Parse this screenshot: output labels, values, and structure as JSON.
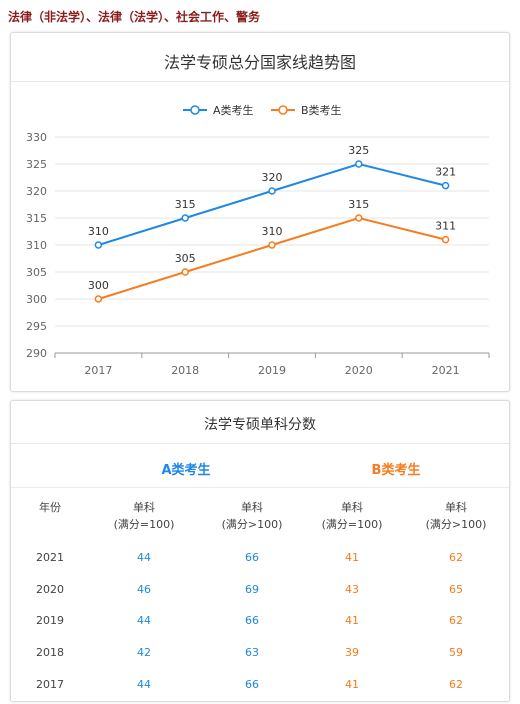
{
  "page": {
    "heading": "法律（非法学）、法律（法学）、社会工作、警务"
  },
  "chart_data": {
    "type": "line",
    "title": "法学专硕总分国家线趋势图",
    "categories": [
      "2017",
      "2018",
      "2019",
      "2020",
      "2021"
    ],
    "series": [
      {
        "name": "A类考生",
        "color": "#1e88e5",
        "values": [
          310,
          315,
          320,
          325,
          321
        ]
      },
      {
        "name": "B类考生",
        "color": "#f57c1f",
        "values": [
          300,
          305,
          310,
          315,
          311
        ]
      }
    ],
    "yticks": [
      290,
      295,
      300,
      305,
      310,
      315,
      320,
      325,
      330
    ],
    "ylim": [
      290,
      330
    ],
    "legend": "top-center",
    "grid": true
  },
  "table": {
    "title": "法学专硕单科分数",
    "group_a": "A类考生",
    "group_b": "B类考生",
    "colors": {
      "a": "#1e88e5",
      "b": "#f57c1f"
    },
    "headers": [
      {
        "l1": "年份",
        "l2": ""
      },
      {
        "l1": "单科",
        "l2": "(满分=100)"
      },
      {
        "l1": "单科",
        "l2": "(满分>100)"
      },
      {
        "l1": "单科",
        "l2": "(满分=100)"
      },
      {
        "l1": "单科",
        "l2": "(满分>100)"
      }
    ],
    "rows": [
      {
        "year": "2021",
        "a1": "44",
        "a2": "66",
        "b1": "41",
        "b2": "62"
      },
      {
        "year": "2020",
        "a1": "46",
        "a2": "69",
        "b1": "43",
        "b2": "65"
      },
      {
        "year": "2019",
        "a1": "44",
        "a2": "66",
        "b1": "41",
        "b2": "62"
      },
      {
        "year": "2018",
        "a1": "42",
        "a2": "63",
        "b1": "39",
        "b2": "59"
      },
      {
        "year": "2017",
        "a1": "44",
        "a2": "66",
        "b1": "41",
        "b2": "62"
      }
    ]
  }
}
